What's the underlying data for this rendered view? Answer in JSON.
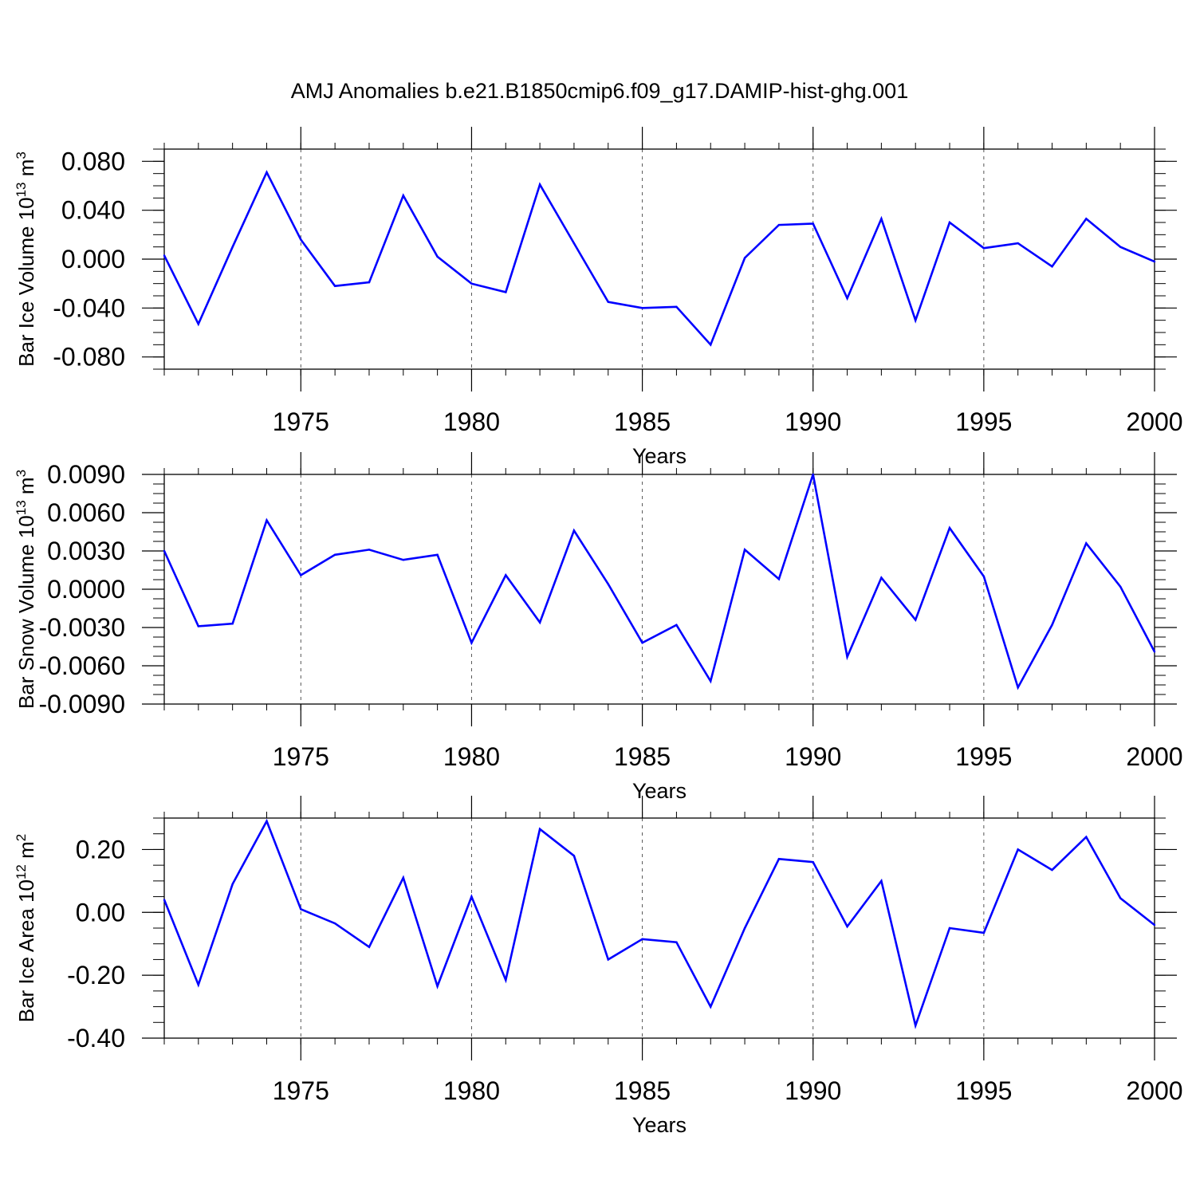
{
  "colors": {
    "line": "#0000ff",
    "axis": "#000000",
    "grid": "#555555",
    "background": "#ffffff"
  },
  "chart_data": {
    "title": "AMJ Anomalies b.e21.B1850cmip6.f09_g17.DAMIP-hist-ghg.001",
    "panels": [
      {
        "type": "line",
        "ylabel_main": "Bar Ice Volume 10",
        "ylabel_exp": "13",
        "ylabel_unit": " m",
        "ylabel_unit_exp": "3",
        "xlabel": "Years",
        "xlim": [
          1971,
          2000
        ],
        "ylim": [
          -0.09,
          0.09
        ],
        "yticks": [
          -0.08,
          -0.04,
          0.0,
          0.04,
          0.08
        ],
        "ytick_labels": [
          "-0.080",
          "-0.040",
          "0.000",
          "0.040",
          "0.080"
        ],
        "xticks": [
          1975,
          1980,
          1985,
          1990,
          1995,
          2000
        ],
        "xtick_labels": [
          "1975",
          "1980",
          "1985",
          "1990",
          "1995",
          "2000"
        ],
        "x": [
          1971,
          1972,
          1973,
          1974,
          1975,
          1976,
          1977,
          1978,
          1979,
          1980,
          1981,
          1982,
          1983,
          1984,
          1985,
          1986,
          1987,
          1988,
          1989,
          1990,
          1991,
          1992,
          1993,
          1994,
          1995,
          1996,
          1997,
          1998,
          1999,
          2000
        ],
        "values": [
          0.003,
          -0.053,
          0.01,
          0.071,
          0.016,
          -0.022,
          -0.019,
          0.052,
          0.002,
          -0.02,
          -0.027,
          0.061,
          0.013,
          -0.035,
          -0.04,
          -0.039,
          -0.07,
          0.001,
          0.028,
          0.029,
          -0.032,
          0.033,
          -0.05,
          0.03,
          0.009,
          0.013,
          -0.006,
          0.033,
          0.01,
          -0.002
        ]
      },
      {
        "type": "line",
        "ylabel_main": "Bar Snow Volume 10",
        "ylabel_exp": "13",
        "ylabel_unit": " m",
        "ylabel_unit_exp": "3",
        "xlabel": "Years",
        "xlim": [
          1971,
          2000
        ],
        "ylim": [
          -0.009,
          0.009
        ],
        "yticks": [
          -0.009,
          -0.006,
          -0.003,
          0.0,
          0.003,
          0.006,
          0.009
        ],
        "ytick_labels": [
          "-0.0090",
          "-0.0060",
          "-0.0030",
          "0.0000",
          "0.0030",
          "0.0060",
          "0.0090"
        ],
        "xticks": [
          1975,
          1980,
          1985,
          1990,
          1995,
          2000
        ],
        "xtick_labels": [
          "1975",
          "1980",
          "1985",
          "1990",
          "1995",
          "2000"
        ],
        "x": [
          1971,
          1972,
          1973,
          1974,
          1975,
          1976,
          1977,
          1978,
          1979,
          1980,
          1981,
          1982,
          1983,
          1984,
          1985,
          1986,
          1987,
          1988,
          1989,
          1990,
          1991,
          1992,
          1993,
          1994,
          1995,
          1996,
          1997,
          1998,
          1999,
          2000
        ],
        "values": [
          0.003,
          -0.0029,
          -0.0027,
          0.0054,
          0.0011,
          0.0027,
          0.0031,
          0.0023,
          0.0027,
          -0.0042,
          0.0011,
          -0.0026,
          0.0046,
          0.0004,
          -0.0042,
          -0.0028,
          -0.0072,
          0.0031,
          0.0008,
          0.009,
          -0.0053,
          0.0009,
          -0.0024,
          0.0048,
          0.001,
          -0.0077,
          -0.0028,
          0.0036,
          0.0002,
          -0.0049
        ]
      },
      {
        "type": "line",
        "ylabel_main": "Bar Ice Area 10",
        "ylabel_exp": "12",
        "ylabel_unit": " m",
        "ylabel_unit_exp": "2",
        "xlabel": "Years",
        "xlim": [
          1971,
          2000
        ],
        "ylim": [
          -0.4,
          0.3
        ],
        "yticks": [
          -0.4,
          -0.2,
          0.0,
          0.2
        ],
        "ytick_labels": [
          "-0.40",
          "-0.20",
          "0.00",
          "0.20"
        ],
        "xticks": [
          1975,
          1980,
          1985,
          1990,
          1995,
          2000
        ],
        "xtick_labels": [
          "1975",
          "1980",
          "1985",
          "1990",
          "1995",
          "2000"
        ],
        "x": [
          1971,
          1972,
          1973,
          1974,
          1975,
          1976,
          1977,
          1978,
          1979,
          1980,
          1981,
          1982,
          1983,
          1984,
          1985,
          1986,
          1987,
          1988,
          1989,
          1990,
          1991,
          1992,
          1993,
          1994,
          1995,
          1996,
          1997,
          1998,
          1999,
          2000
        ],
        "values": [
          0.04,
          -0.23,
          0.09,
          0.29,
          0.01,
          -0.035,
          -0.11,
          0.11,
          -0.235,
          0.05,
          -0.215,
          0.265,
          0.18,
          -0.15,
          -0.085,
          -0.095,
          -0.3,
          -0.05,
          0.17,
          0.16,
          -0.045,
          0.1,
          -0.36,
          -0.05,
          -0.065,
          0.2,
          0.135,
          0.24,
          0.045,
          -0.04
        ]
      }
    ]
  }
}
